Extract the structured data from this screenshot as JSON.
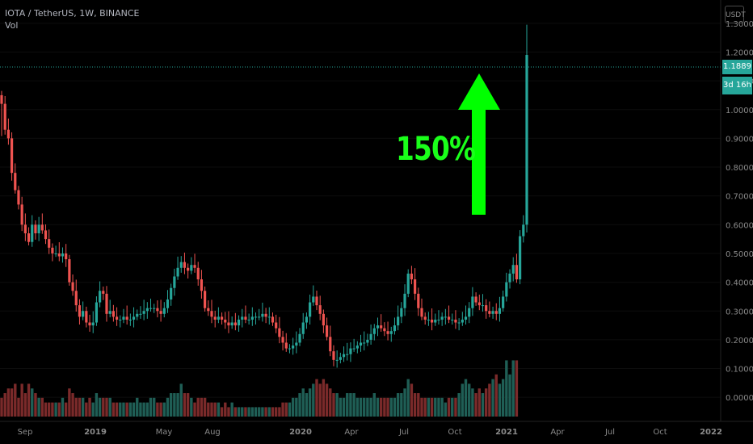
{
  "legend": {
    "symbol": "IOTA / TetherUS, 1W, BINANCE",
    "volume": "Vol"
  },
  "annotation": "150%",
  "currency_button": "USDT",
  "last_price": "1.1889",
  "countdown": "3d 16h",
  "colors": {
    "up": "#26a69a",
    "down": "#ef5350",
    "arrow": "#00ff00",
    "vol_up": "#1f5e55",
    "vol_down": "#7a2a2a"
  },
  "chart_data": {
    "type": "candlestick",
    "ylim": [
      -0.05,
      1.35
    ],
    "y_ticks": [
      "1.3000",
      "1.2000",
      "1.1000",
      "1.0000",
      "0.9000",
      "0.8000",
      "0.7000",
      "0.6000",
      "0.5000",
      "0.4000",
      "0.3000",
      "0.2000",
      "0.1000",
      "0.0000"
    ],
    "x_ticks": [
      "Sep",
      "2019",
      "May",
      "Aug",
      "2020",
      "Apr",
      "Jul",
      "Oct",
      "2021",
      "Apr",
      "Jul",
      "Oct",
      "2022"
    ],
    "last_value": 1.1889,
    "close_path": [
      1.02,
      0.93,
      0.9,
      0.78,
      0.72,
      0.67,
      0.6,
      0.57,
      0.54,
      0.6,
      0.57,
      0.6,
      0.58,
      0.55,
      0.52,
      0.5,
      0.5,
      0.49,
      0.5,
      0.48,
      0.4,
      0.37,
      0.32,
      0.28,
      0.3,
      0.26,
      0.25,
      0.26,
      0.33,
      0.37,
      0.36,
      0.29,
      0.3,
      0.28,
      0.27,
      0.27,
      0.28,
      0.27,
      0.27,
      0.28,
      0.29,
      0.29,
      0.3,
      0.31,
      0.31,
      0.31,
      0.3,
      0.29,
      0.31,
      0.34,
      0.38,
      0.42,
      0.45,
      0.47,
      0.45,
      0.44,
      0.46,
      0.45,
      0.41,
      0.37,
      0.31,
      0.3,
      0.28,
      0.27,
      0.28,
      0.27,
      0.26,
      0.25,
      0.26,
      0.25,
      0.27,
      0.28,
      0.27,
      0.27,
      0.28,
      0.28,
      0.28,
      0.29,
      0.28,
      0.28,
      0.26,
      0.24,
      0.21,
      0.19,
      0.17,
      0.17,
      0.18,
      0.19,
      0.22,
      0.26,
      0.28,
      0.33,
      0.35,
      0.32,
      0.29,
      0.25,
      0.21,
      0.16,
      0.13,
      0.13,
      0.14,
      0.15,
      0.15,
      0.17,
      0.17,
      0.18,
      0.19,
      0.19,
      0.2,
      0.22,
      0.24,
      0.25,
      0.24,
      0.23,
      0.22,
      0.23,
      0.25,
      0.28,
      0.31,
      0.36,
      0.43,
      0.41,
      0.36,
      0.31,
      0.28,
      0.27,
      0.27,
      0.26,
      0.27,
      0.27,
      0.28,
      0.28,
      0.27,
      0.27,
      0.26,
      0.26,
      0.27,
      0.28,
      0.31,
      0.35,
      0.33,
      0.32,
      0.32,
      0.3,
      0.29,
      0.3,
      0.29,
      0.31,
      0.35,
      0.4,
      0.43,
      0.46,
      0.41,
      0.56,
      0.6,
      1.19
    ],
    "volume_path": [
      0.04,
      0.05,
      0.06,
      0.06,
      0.07,
      0.04,
      0.07,
      0.05,
      0.07,
      0.06,
      0.05,
      0.04,
      0.04,
      0.03,
      0.03,
      0.03,
      0.03,
      0.03,
      0.04,
      0.03,
      0.06,
      0.05,
      0.04,
      0.04,
      0.04,
      0.03,
      0.04,
      0.03,
      0.05,
      0.04,
      0.04,
      0.04,
      0.04,
      0.03,
      0.03,
      0.03,
      0.03,
      0.03,
      0.03,
      0.03,
      0.04,
      0.03,
      0.03,
      0.03,
      0.04,
      0.04,
      0.03,
      0.03,
      0.03,
      0.04,
      0.05,
      0.05,
      0.05,
      0.07,
      0.05,
      0.05,
      0.04,
      0.03,
      0.04,
      0.04,
      0.04,
      0.03,
      0.03,
      0.03,
      0.03,
      0.02,
      0.03,
      0.02,
      0.03,
      0.02,
      0.02,
      0.02,
      0.02,
      0.02,
      0.02,
      0.02,
      0.02,
      0.02,
      0.02,
      0.02,
      0.02,
      0.02,
      0.02,
      0.03,
      0.03,
      0.03,
      0.04,
      0.04,
      0.05,
      0.06,
      0.05,
      0.06,
      0.07,
      0.08,
      0.07,
      0.08,
      0.07,
      0.06,
      0.05,
      0.05,
      0.04,
      0.04,
      0.05,
      0.05,
      0.05,
      0.04,
      0.04,
      0.04,
      0.04,
      0.04,
      0.05,
      0.04,
      0.04,
      0.04,
      0.04,
      0.04,
      0.04,
      0.05,
      0.05,
      0.06,
      0.08,
      0.07,
      0.05,
      0.05,
      0.04,
      0.04,
      0.04,
      0.04,
      0.04,
      0.04,
      0.04,
      0.03,
      0.04,
      0.04,
      0.04,
      0.05,
      0.07,
      0.08,
      0.07,
      0.06,
      0.05,
      0.06,
      0.05,
      0.06,
      0.07,
      0.08,
      0.09,
      0.07,
      0.08,
      0.12,
      0.09,
      0.12,
      0.12
    ]
  }
}
